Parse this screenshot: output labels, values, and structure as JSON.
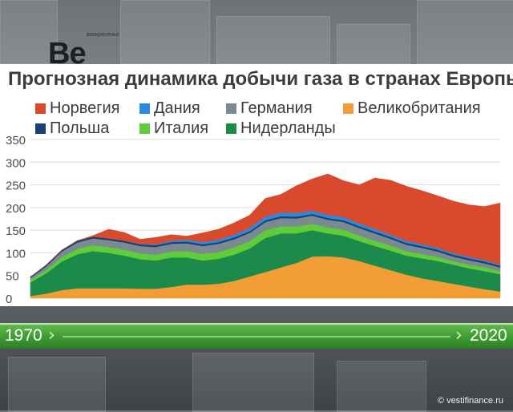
{
  "chart_data": {
    "type": "area",
    "title": "Прогнозная динамика добычи газа в странах Европы",
    "stacked": true,
    "ylim": [
      0,
      350
    ],
    "y_ticks": [
      "0",
      "50",
      "100",
      "150",
      "200",
      "250",
      "300",
      "350"
    ],
    "x_range_labels": [
      "1970",
      "2020"
    ],
    "legend_placement": "top",
    "x": [
      1970,
      1972,
      1974,
      1976,
      1978,
      1980,
      1982,
      1984,
      1986,
      1988,
      1990,
      1992,
      1994,
      1996,
      1998,
      2000,
      2002,
      2004,
      2006,
      2008,
      2010,
      2012,
      2014,
      2016,
      2018,
      2020,
      2022,
      2024,
      2026,
      2028,
      2030
    ],
    "series": [
      {
        "name": "Великобритания",
        "color": "#f29d35",
        "values": [
          5,
          10,
          18,
          22,
          22,
          22,
          22,
          21,
          21,
          25,
          30,
          30,
          32,
          38,
          48,
          58,
          68,
          78,
          92,
          93,
          90,
          82,
          72,
          62,
          52,
          44,
          38,
          32,
          26,
          20,
          15
        ]
      },
      {
        "name": "Нидерланды",
        "color": "#1c8a4a",
        "values": [
          30,
          45,
          63,
          75,
          82,
          78,
          72,
          65,
          62,
          65,
          60,
          53,
          55,
          58,
          62,
          75,
          75,
          65,
          58,
          50,
          48,
          44,
          43,
          43,
          42,
          44,
          44,
          42,
          40,
          40,
          38
        ]
      },
      {
        "name": "Италия",
        "color": "#5fcc3a",
        "values": [
          6,
          7,
          10,
          12,
          13,
          13,
          13,
          13,
          13,
          13,
          14,
          15,
          15,
          16,
          16,
          17,
          16,
          15,
          14,
          13,
          13,
          12,
          12,
          11,
          10,
          10,
          9,
          8,
          8,
          8,
          7
        ]
      },
      {
        "name": "Германия",
        "color": "#7a8a90",
        "values": [
          4,
          8,
          12,
          14,
          15,
          15,
          16,
          16,
          17,
          17,
          17,
          17,
          18,
          18,
          18,
          18,
          18,
          18,
          18,
          17,
          17,
          17,
          16,
          15,
          14,
          13,
          12,
          10,
          10,
          9,
          8
        ]
      },
      {
        "name": "Польша",
        "color": "#1b3f75",
        "values": [
          2,
          3,
          3,
          4,
          4,
          4,
          4,
          4,
          4,
          4,
          4,
          4,
          4,
          4,
          4,
          4,
          4,
          4,
          4,
          4,
          4,
          4,
          4,
          4,
          4,
          4,
          4,
          4,
          4,
          4,
          4
        ]
      },
      {
        "name": "Дания",
        "color": "#2a8ae0",
        "values": [
          0,
          0,
          0,
          0,
          0,
          0,
          0,
          1,
          2,
          3,
          4,
          5,
          5,
          6,
          7,
          8,
          8,
          8,
          7,
          7,
          7,
          6,
          6,
          5,
          5,
          4,
          4,
          3,
          3,
          3,
          2
        ]
      },
      {
        "name": "Норвегия",
        "color": "#d94a2c",
        "values": [
          0,
          0,
          0,
          0,
          2,
          20,
          18,
          10,
          15,
          13,
          8,
          20,
          23,
          26,
          28,
          40,
          40,
          60,
          70,
          90,
          80,
          85,
          112,
          120,
          120,
          118,
          115,
          115,
          115,
          118,
          136
        ]
      }
    ]
  },
  "legend": [
    {
      "label": "Норвегия",
      "color": "#d94a2c"
    },
    {
      "label": "Дания",
      "color": "#2a8ae0"
    },
    {
      "label": "Германия",
      "color": "#7a8a90"
    },
    {
      "label": "Великобритания",
      "color": "#f29d35"
    },
    {
      "label": "Польша",
      "color": "#1b3f75"
    },
    {
      "label": "Италия",
      "color": "#5fcc3a"
    },
    {
      "label": "Нидерланды",
      "color": "#1c8a4a"
    }
  ],
  "timeline": {
    "start_label": "1970",
    "end_label": "2020"
  },
  "background": {
    "logo_text": "Ве",
    "logo_small": "воскресенье"
  },
  "watermark": "© vestifinance.ru"
}
